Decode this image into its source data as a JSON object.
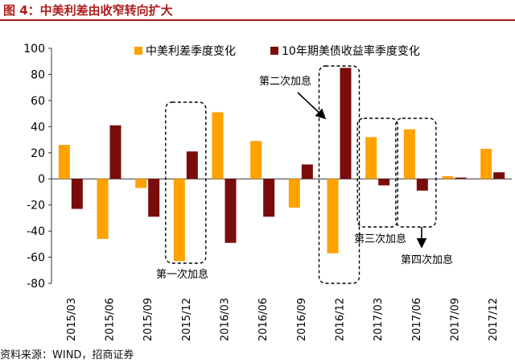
{
  "title": "图 4：中美利差由收窄转向扩大",
  "source": "资料来源：WIND，招商证券",
  "colors": {
    "title": "#b01c1c",
    "series1": "#ffa200",
    "series2": "#7b0c0c"
  },
  "chart_data": {
    "type": "bar",
    "categories": [
      "2015/03",
      "2015/06",
      "2015/09",
      "2015/12",
      "2016/03",
      "2016/06",
      "2016/09",
      "2016/12",
      "2017/03",
      "2017/06",
      "2017/09",
      "2017/12"
    ],
    "series": [
      {
        "name": "中美利差季度变化",
        "values": [
          26,
          -46,
          -7,
          -63,
          51,
          29,
          -22,
          -57,
          32,
          38,
          2,
          23
        ]
      },
      {
        "name": "10年期美债收益率季度变化",
        "values": [
          -23,
          41,
          -29,
          21,
          -49,
          -29,
          11,
          85,
          -5,
          -9,
          1,
          5
        ]
      }
    ],
    "ylim": [
      -80,
      100
    ],
    "yticks": [
      100,
      80,
      60,
      40,
      20,
      0,
      -20,
      -40,
      -60,
      -80
    ],
    "legend_position": "top",
    "annotations": [
      {
        "text": "第一次加息",
        "category": "2015/12"
      },
      {
        "text": "第二次加息",
        "category": "2016/12"
      },
      {
        "text": "第三次加息",
        "category": "2017/03"
      },
      {
        "text": "第四次加息",
        "category": "2017/06"
      }
    ]
  }
}
